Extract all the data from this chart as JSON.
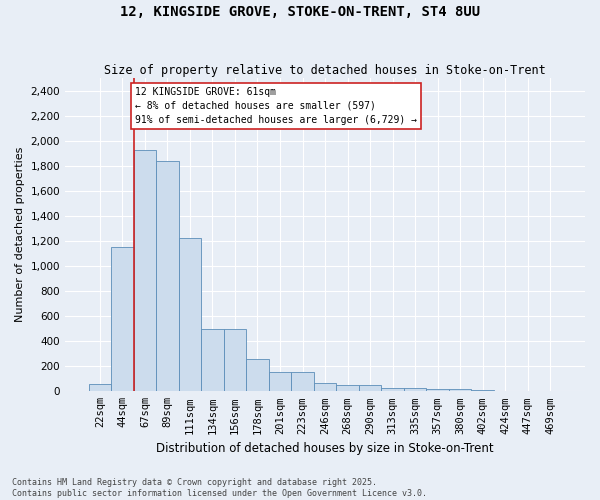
{
  "title": "12, KINGSIDE GROVE, STOKE-ON-TRENT, ST4 8UU",
  "subtitle": "Size of property relative to detached houses in Stoke-on-Trent",
  "xlabel": "Distribution of detached houses by size in Stoke-on-Trent",
  "ylabel": "Number of detached properties",
  "categories": [
    "22sqm",
    "44sqm",
    "67sqm",
    "89sqm",
    "111sqm",
    "134sqm",
    "156sqm",
    "178sqm",
    "201sqm",
    "223sqm",
    "246sqm",
    "268sqm",
    "290sqm",
    "313sqm",
    "335sqm",
    "357sqm",
    "380sqm",
    "402sqm",
    "424sqm",
    "447sqm",
    "469sqm"
  ],
  "values": [
    55,
    1150,
    1930,
    1840,
    1220,
    500,
    500,
    260,
    155,
    155,
    70,
    50,
    50,
    30,
    30,
    20,
    20,
    10,
    5,
    3,
    2
  ],
  "bar_color": "#ccdced",
  "bar_edge_color": "#5b8db8",
  "background_color": "#e8eef6",
  "grid_color": "#ffffff",
  "vline_color": "#cc2222",
  "vline_x": 1.5,
  "annotation_text": "12 KINGSIDE GROVE: 61sqm\n← 8% of detached houses are smaller (597)\n91% of semi-detached houses are larger (6,729) →",
  "annotation_box_facecolor": "#ffffff",
  "annotation_box_edgecolor": "#cc2222",
  "footer_text": "Contains HM Land Registry data © Crown copyright and database right 2025.\nContains public sector information licensed under the Open Government Licence v3.0.",
  "ylim": [
    0,
    2500
  ],
  "yticks": [
    0,
    200,
    400,
    600,
    800,
    1000,
    1200,
    1400,
    1600,
    1800,
    2000,
    2200,
    2400
  ],
  "title_fontsize": 10,
  "subtitle_fontsize": 8.5,
  "ylabel_fontsize": 8,
  "xlabel_fontsize": 8.5,
  "tick_fontsize": 7.5,
  "footer_fontsize": 6,
  "annot_fontsize": 7
}
